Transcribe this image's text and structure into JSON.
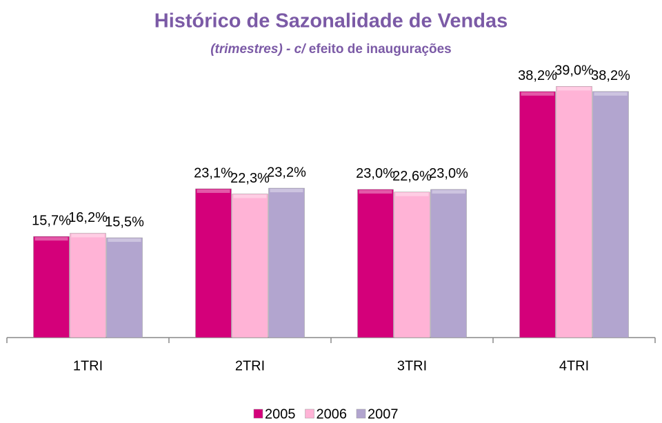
{
  "chart_data": {
    "type": "bar",
    "title": "Histórico de Sazonalidade de Vendas",
    "subtitle": [
      "(trimestres) - c/",
      "efeito de inaugurações"
    ],
    "categories": [
      "1TRI",
      "2TRI",
      "3TRI",
      "4TRI"
    ],
    "series": [
      {
        "name": "2005",
        "color": "#d4007a",
        "values": [
          15.7,
          23.1,
          23.0,
          38.2
        ],
        "value_labels": [
          "15,7%",
          "23,1%",
          "23,0%",
          "38,2%"
        ]
      },
      {
        "name": "2006",
        "color": "#ffb3d6",
        "values": [
          16.2,
          22.3,
          22.6,
          39.0
        ],
        "value_labels": [
          "16,2%",
          "22,3%",
          "22,6%",
          "39,0%"
        ]
      },
      {
        "name": "2007",
        "color": "#b2a5cf",
        "values": [
          15.5,
          23.2,
          23.0,
          38.2
        ],
        "value_labels": [
          "15,5%",
          "23,2%",
          "23,0%",
          "38,2%"
        ]
      }
    ],
    "ylim": [
      0,
      40
    ],
    "legend": "bottom"
  }
}
